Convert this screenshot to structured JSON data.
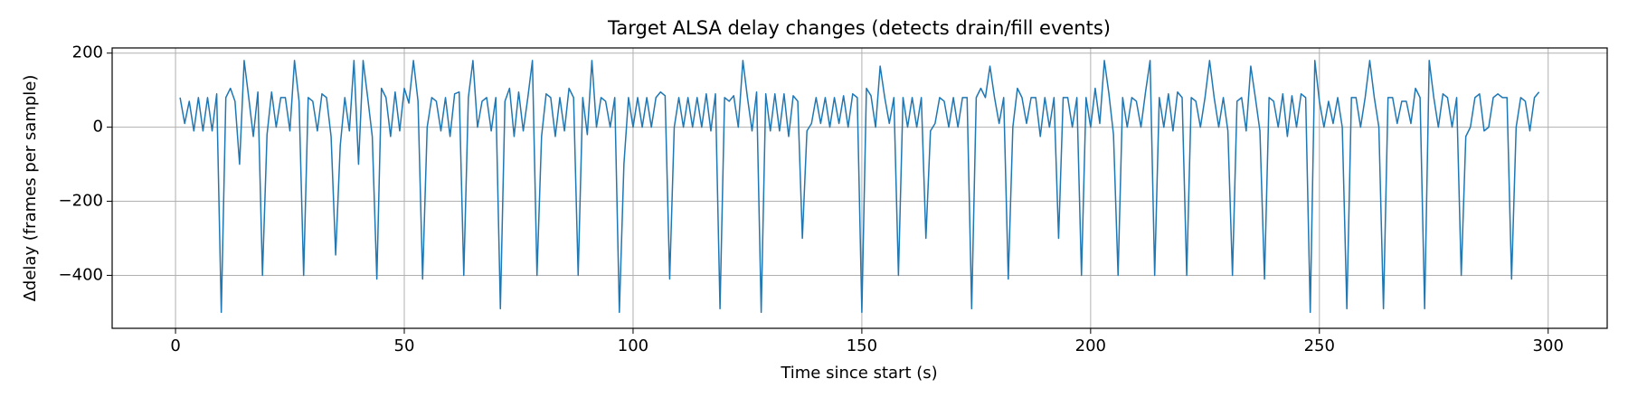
{
  "chart_data": {
    "type": "line",
    "title": "Target ALSA delay changes (detects drain/fill events)",
    "x_label": "Time since start (s)",
    "y_label": "Δdelay (frames per sample)",
    "color": "#1f77b4",
    "grid": true,
    "xlim": [
      -13.85,
      312.9
    ],
    "ylim": [
      -543,
      214
    ],
    "xticks": [
      0,
      50,
      100,
      150,
      200,
      250,
      300
    ],
    "yticks": [
      -400,
      -200,
      0,
      200
    ],
    "x": [
      1,
      2,
      3,
      4,
      5,
      6,
      7,
      8,
      9,
      10,
      11,
      12,
      13,
      14,
      15,
      16,
      17,
      18,
      19,
      20,
      21,
      22,
      23,
      24,
      25,
      26,
      27,
      28,
      29,
      30,
      31,
      32,
      33,
      34,
      35,
      36,
      37,
      38,
      39,
      40,
      41,
      42,
      43,
      44,
      45,
      46,
      47,
      48,
      49,
      50,
      51,
      52,
      53,
      54,
      55,
      56,
      57,
      58,
      59,
      60,
      61,
      62,
      63,
      64,
      65,
      66,
      67,
      68,
      69,
      70,
      71,
      72,
      73,
      74,
      75,
      76,
      77,
      78,
      79,
      80,
      81,
      82,
      83,
      84,
      85,
      86,
      87,
      88,
      89,
      90,
      91,
      92,
      93,
      94,
      95,
      96,
      97,
      98,
      99,
      100,
      101,
      102,
      103,
      104,
      105,
      106,
      107,
      108,
      109,
      110,
      111,
      112,
      113,
      114,
      115,
      116,
      117,
      118,
      119,
      120,
      121,
      122,
      123,
      124,
      125,
      126,
      127,
      128,
      129,
      130,
      131,
      132,
      133,
      134,
      135,
      136,
      137,
      138,
      139,
      140,
      141,
      142,
      143,
      144,
      145,
      146,
      147,
      148,
      149,
      150,
      151,
      152,
      153,
      154,
      155,
      156,
      157,
      158,
      159,
      160,
      161,
      162,
      163,
      164,
      165,
      166,
      167,
      168,
      169,
      170,
      171,
      172,
      173,
      174,
      175,
      176,
      177,
      178,
      179,
      180,
      181,
      182,
      183,
      184,
      185,
      186,
      187,
      188,
      189,
      190,
      191,
      192,
      193,
      194,
      195,
      196,
      197,
      198,
      199,
      200,
      201,
      202,
      203,
      204,
      205,
      206,
      207,
      208,
      209,
      210,
      211,
      212,
      213,
      214,
      215,
      216,
      217,
      218,
      219,
      220,
      221,
      222,
      223,
      224,
      225,
      226,
      227,
      228,
      229,
      230,
      231,
      232,
      233,
      234,
      235,
      236,
      237,
      238,
      239,
      240,
      241,
      242,
      243,
      244,
      245,
      246,
      247,
      248,
      249,
      250,
      251,
      252,
      253,
      254,
      255,
      256,
      257,
      258,
      259,
      260,
      261,
      262,
      263,
      264,
      265,
      266,
      267,
      268,
      269,
      270,
      271,
      272,
      273,
      274,
      275,
      276,
      277,
      278,
      279,
      280,
      281,
      282,
      283,
      284,
      285,
      286,
      287,
      288,
      289,
      290,
      291,
      292,
      293,
      294,
      295,
      296,
      297,
      298
    ],
    "values": [
      80,
      10,
      70,
      -10,
      80,
      -10,
      80,
      -10,
      90,
      -500,
      80,
      105,
      70,
      -100,
      180,
      80,
      -25,
      95,
      -400,
      -20,
      95,
      0,
      80,
      80,
      -10,
      180,
      70,
      -400,
      80,
      70,
      -10,
      90,
      80,
      -25,
      -345,
      -50,
      80,
      -10,
      180,
      -100,
      180,
      80,
      -25,
      -410,
      105,
      80,
      -25,
      95,
      -10,
      105,
      65,
      180,
      70,
      -410,
      0,
      80,
      70,
      -10,
      80,
      -25,
      90,
      95,
      -400,
      80,
      180,
      0,
      70,
      80,
      -10,
      80,
      -490,
      70,
      105,
      -25,
      95,
      -10,
      80,
      180,
      -400,
      -25,
      90,
      80,
      -25,
      80,
      -10,
      105,
      80,
      -400,
      80,
      -20,
      180,
      0,
      80,
      70,
      0,
      80,
      -500,
      -100,
      80,
      0,
      80,
      0,
      80,
      0,
      80,
      95,
      85,
      -410,
      0,
      80,
      0,
      80,
      0,
      80,
      0,
      90,
      -10,
      90,
      -490,
      80,
      70,
      85,
      0,
      180,
      80,
      -10,
      95,
      -500,
      90,
      -10,
      90,
      -10,
      90,
      -25,
      85,
      70,
      -300,
      -10,
      10,
      80,
      10,
      80,
      0,
      80,
      10,
      85,
      0,
      90,
      80,
      -500,
      105,
      85,
      0,
      165,
      80,
      10,
      80,
      -400,
      80,
      0,
      80,
      0,
      80,
      -300,
      -10,
      10,
      80,
      70,
      0,
      80,
      0,
      80,
      80,
      -490,
      80,
      105,
      80,
      165,
      80,
      10,
      80,
      -410,
      0,
      105,
      80,
      10,
      80,
      80,
      -25,
      80,
      0,
      80,
      -300,
      80,
      80,
      0,
      80,
      -400,
      80,
      0,
      105,
      10,
      180,
      90,
      -20,
      -400,
      80,
      0,
      80,
      70,
      0,
      95,
      180,
      -400,
      80,
      0,
      90,
      -10,
      95,
      80,
      -400,
      80,
      70,
      0,
      80,
      180,
      80,
      0,
      80,
      -10,
      -400,
      70,
      80,
      -10,
      165,
      80,
      -10,
      -410,
      80,
      70,
      0,
      90,
      -25,
      85,
      0,
      90,
      80,
      -500,
      180,
      70,
      0,
      70,
      10,
      80,
      0,
      -490,
      80,
      80,
      0,
      80,
      180,
      80,
      0,
      -490,
      80,
      80,
      10,
      70,
      70,
      10,
      105,
      80,
      -490,
      180,
      80,
      0,
      90,
      80,
      0,
      80,
      -400,
      -25,
      0,
      80,
      90,
      -10,
      0,
      80,
      90,
      80,
      80,
      -410,
      0,
      80,
      70,
      -10,
      80,
      95
    ]
  }
}
